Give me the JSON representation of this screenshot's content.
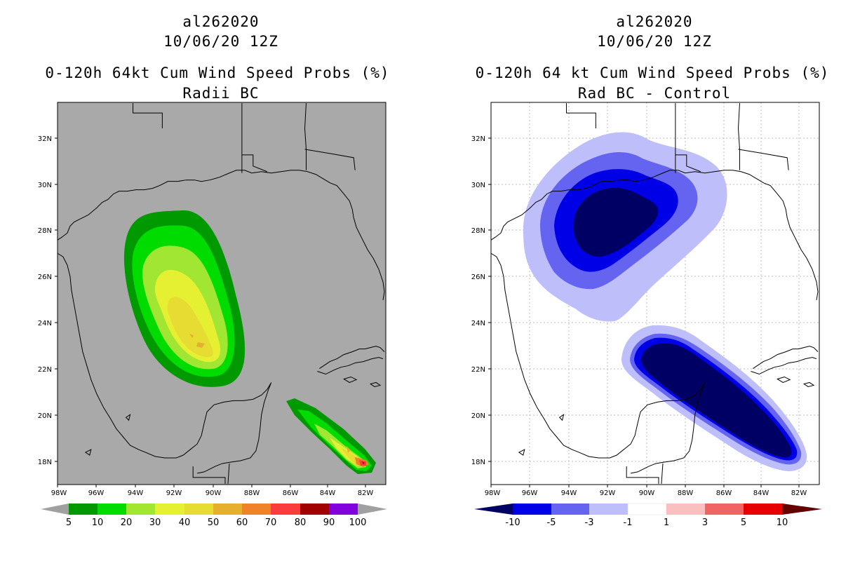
{
  "left_panel": {
    "line1": "al262020",
    "line2": "10/06/20 12Z",
    "line3": "0-120h 64kt Cum Wind Speed Probs (%)",
    "line4": "Radii BC",
    "lat_labels": [
      "32N",
      "30N",
      "28N",
      "26N",
      "24N",
      "22N",
      "20N",
      "18N"
    ],
    "lon_labels": [
      "98W",
      "96W",
      "94W",
      "92W",
      "90W",
      "88W",
      "86W",
      "84W",
      "82W"
    ],
    "colorbar": {
      "labels": [
        "5",
        "10",
        "20",
        "30",
        "40",
        "50",
        "60",
        "70",
        "80",
        "90",
        "100"
      ],
      "colors": [
        "#009a00",
        "#00dc00",
        "#a0e632",
        "#e6f032",
        "#e6dc32",
        "#e6af2d",
        "#f08228",
        "#fa3c3c",
        "#a00000",
        "#8200dc"
      ],
      "under": "#a0a0a0",
      "over": "#a0a0a0"
    }
  },
  "right_panel": {
    "line1": "al262020",
    "line2": "10/06/20 12Z",
    "line3": "0-120h 64 kt Cum Wind Speed Probs (%)",
    "line4": "Rad BC - Control",
    "lat_labels": [
      "32N",
      "30N",
      "28N",
      "26N",
      "24N",
      "22N",
      "20N",
      "18N"
    ],
    "lon_labels": [
      "98W",
      "96W",
      "94W",
      "92W",
      "90W",
      "88W",
      "86W",
      "84W",
      "82W"
    ],
    "colorbar": {
      "labels": [
        "-10",
        "-5",
        "-3",
        "-1",
        "1",
        "3",
        "5",
        "10"
      ],
      "colors": [
        "#0000e6",
        "#6464f0",
        "#bebefa",
        "#ffffff",
        "#fac0c0",
        "#f06464",
        "#e60000"
      ],
      "under": "#000064",
      "over": "#640000"
    }
  }
}
